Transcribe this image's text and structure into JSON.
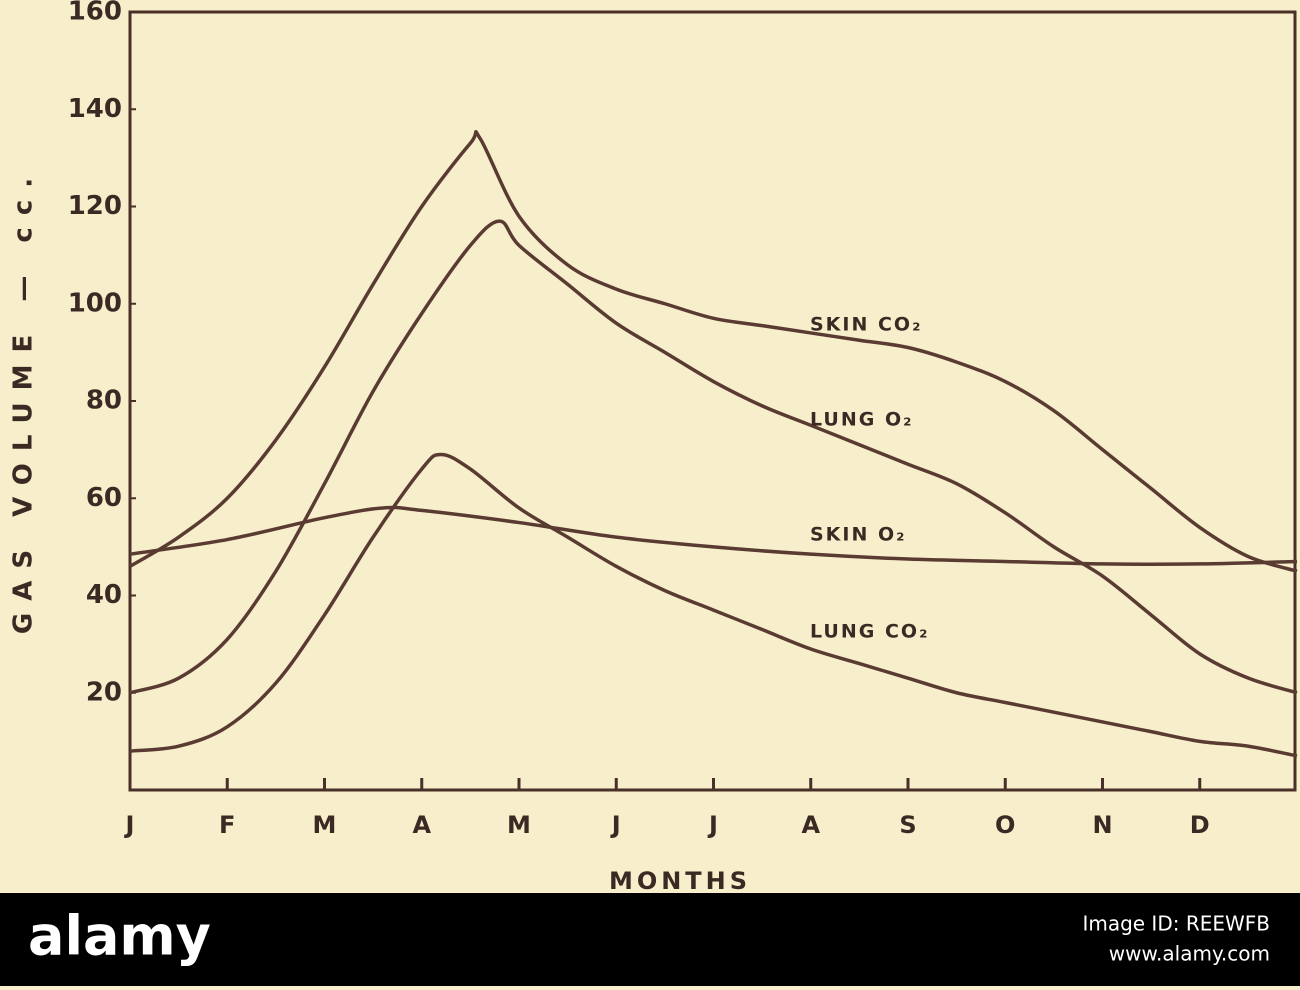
{
  "chart_data": {
    "type": "line",
    "y_label": "GAS VOLUME — cc.",
    "x_label": "MONTHS",
    "xlim": [
      0,
      12
    ],
    "xticks": [
      {
        "value": 0,
        "label": "J"
      },
      {
        "value": 1,
        "label": "F"
      },
      {
        "value": 2,
        "label": "M"
      },
      {
        "value": 3,
        "label": "A"
      },
      {
        "value": 4,
        "label": "M"
      },
      {
        "value": 5,
        "label": "J"
      },
      {
        "value": 6,
        "label": "J"
      },
      {
        "value": 7,
        "label": "A"
      },
      {
        "value": 8,
        "label": "S"
      },
      {
        "value": 9,
        "label": "O"
      },
      {
        "value": 10,
        "label": "N"
      },
      {
        "value": 11,
        "label": "D"
      }
    ],
    "ylim": [
      0,
      160
    ],
    "yticks": [
      20,
      40,
      60,
      80,
      100,
      120,
      140,
      160
    ],
    "grid": false,
    "series": [
      {
        "name": "SKIN CO₂",
        "color": "#5a3b32",
        "x": [
          0,
          0.5,
          1,
          1.5,
          2,
          2.5,
          3,
          3.5,
          3.6,
          4,
          4.5,
          5,
          5.5,
          6,
          6.5,
          7,
          7.5,
          8,
          8.5,
          9,
          9.5,
          10,
          10.5,
          11,
          11.5,
          12
        ],
        "values": [
          46,
          52,
          60,
          72,
          87,
          104,
          120,
          133,
          134,
          118,
          108,
          103,
          100,
          97,
          95.5,
          94,
          92.5,
          91,
          88,
          84,
          78,
          70,
          62,
          54,
          48,
          45
        ]
      },
      {
        "name": "LUNG O₂",
        "color": "#5a3b32",
        "x": [
          0,
          0.5,
          1,
          1.5,
          2,
          2.5,
          3,
          3.5,
          3.8,
          4,
          4.5,
          5,
          5.5,
          6,
          6.5,
          7,
          7.5,
          8,
          8.5,
          9,
          9.5,
          10,
          10.5,
          11,
          11.5,
          12
        ],
        "values": [
          20,
          23,
          31,
          45,
          63,
          82,
          98,
          112,
          117,
          112,
          104,
          96,
          90,
          84,
          79,
          75,
          71,
          67,
          63,
          57,
          50,
          44,
          36,
          28,
          23,
          20
        ]
      },
      {
        "name": "SKIN O₂",
        "color": "#5a3b32",
        "x": [
          0,
          1,
          2,
          2.6,
          3,
          4,
          5,
          6,
          7,
          8,
          9,
          10,
          11,
          12
        ],
        "values": [
          48.5,
          51.5,
          56,
          58,
          57.5,
          55,
          52,
          50,
          48.5,
          47.5,
          47,
          46.5,
          46.5,
          47
        ]
      },
      {
        "name": "LUNG CO₂",
        "color": "#5a3b32",
        "x": [
          0,
          0.5,
          1,
          1.5,
          2,
          2.5,
          3,
          3.2,
          3.5,
          4,
          4.5,
          5,
          5.5,
          6,
          6.5,
          7,
          7.5,
          8,
          8.5,
          9,
          9.5,
          10,
          10.5,
          11,
          11.5,
          12
        ],
        "values": [
          8,
          9,
          13,
          22,
          36,
          52,
          66,
          69,
          66,
          58,
          52,
          46,
          41,
          37,
          33,
          29,
          26,
          23,
          20,
          18,
          16,
          14,
          12,
          10,
          9,
          7
        ]
      }
    ]
  },
  "footer": {
    "brand": "alamy",
    "image_id": "Image ID: REEWFB",
    "url": "www.alamy.com"
  }
}
